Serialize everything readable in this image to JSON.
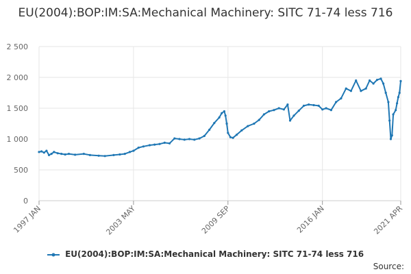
{
  "chart_data": {
    "type": "line",
    "title": "EU(2004):BOP:IM:SA:Mechanical Machinery: SITC 71-74 less 716",
    "xlabel": "",
    "ylabel": "",
    "ylim": [
      0,
      2500
    ],
    "yticks": [
      "0",
      "500",
      "1 000",
      "1 500",
      "2 000",
      "2 500"
    ],
    "xticks": [
      {
        "label": "1997 JAN",
        "date": "1997-01"
      },
      {
        "label": "2003 MAY",
        "date": "2003-05"
      },
      {
        "label": "2009 SEP",
        "date": "2009-09"
      },
      {
        "label": "2016 JAN",
        "date": "2016-01"
      },
      {
        "label": "2021 APR",
        "date": "2021-04"
      }
    ],
    "grid": true,
    "legend_position": "bottom",
    "series": [
      {
        "name": "EU(2004):BOP:IM:SA:Mechanical Machinery: SITC 71-74 less 716",
        "color": "#1f77b4",
        "points": [
          [
            "1997-01",
            790
          ],
          [
            "1997-03",
            800
          ],
          [
            "1997-05",
            780
          ],
          [
            "1997-07",
            810
          ],
          [
            "1997-09",
            740
          ],
          [
            "1997-11",
            760
          ],
          [
            "1998-01",
            790
          ],
          [
            "1998-04",
            770
          ],
          [
            "1998-07",
            760
          ],
          [
            "1998-10",
            750
          ],
          [
            "1999-01",
            760
          ],
          [
            "1999-06",
            745
          ],
          [
            "2000-01",
            760
          ],
          [
            "2000-06",
            740
          ],
          [
            "2001-01",
            730
          ],
          [
            "2001-06",
            725
          ],
          [
            "2002-01",
            740
          ],
          [
            "2002-06",
            750
          ],
          [
            "2002-10",
            760
          ],
          [
            "2003-02",
            790
          ],
          [
            "2003-05",
            810
          ],
          [
            "2003-09",
            860
          ],
          [
            "2004-01",
            880
          ],
          [
            "2004-06",
            900
          ],
          [
            "2004-10",
            910
          ],
          [
            "2005-02",
            920
          ],
          [
            "2005-06",
            940
          ],
          [
            "2005-10",
            930
          ],
          [
            "2006-02",
            1010
          ],
          [
            "2006-06",
            1000
          ],
          [
            "2006-10",
            990
          ],
          [
            "2007-02",
            1000
          ],
          [
            "2007-06",
            990
          ],
          [
            "2007-10",
            1010
          ],
          [
            "2008-02",
            1050
          ],
          [
            "2008-06",
            1150
          ],
          [
            "2008-10",
            1260
          ],
          [
            "2009-02",
            1350
          ],
          [
            "2009-04",
            1420
          ],
          [
            "2009-06",
            1450
          ],
          [
            "2009-07",
            1380
          ],
          [
            "2009-08",
            1250
          ],
          [
            "2009-09",
            1100
          ],
          [
            "2009-11",
            1030
          ],
          [
            "2010-01",
            1020
          ],
          [
            "2010-04",
            1070
          ],
          [
            "2010-08",
            1140
          ],
          [
            "2011-01",
            1210
          ],
          [
            "2011-06",
            1250
          ],
          [
            "2011-10",
            1310
          ],
          [
            "2012-02",
            1400
          ],
          [
            "2012-06",
            1450
          ],
          [
            "2012-10",
            1470
          ],
          [
            "2013-02",
            1500
          ],
          [
            "2013-06",
            1480
          ],
          [
            "2013-09",
            1560
          ],
          [
            "2013-11",
            1300
          ],
          [
            "2014-02",
            1380
          ],
          [
            "2014-06",
            1460
          ],
          [
            "2014-10",
            1540
          ],
          [
            "2015-02",
            1560
          ],
          [
            "2015-06",
            1550
          ],
          [
            "2015-10",
            1540
          ],
          [
            "2016-01",
            1480
          ],
          [
            "2016-04",
            1500
          ],
          [
            "2016-08",
            1470
          ],
          [
            "2016-12",
            1600
          ],
          [
            "2017-04",
            1660
          ],
          [
            "2017-08",
            1820
          ],
          [
            "2017-12",
            1780
          ],
          [
            "2018-04",
            1950
          ],
          [
            "2018-08",
            1780
          ],
          [
            "2018-12",
            1820
          ],
          [
            "2019-03",
            1950
          ],
          [
            "2019-06",
            1900
          ],
          [
            "2019-09",
            1960
          ],
          [
            "2019-12",
            1980
          ],
          [
            "2020-02",
            1900
          ],
          [
            "2020-04",
            1750
          ],
          [
            "2020-06",
            1600
          ],
          [
            "2020-07",
            1300
          ],
          [
            "2020-08",
            1000
          ],
          [
            "2020-09",
            1060
          ],
          [
            "2020-10",
            1400
          ],
          [
            "2020-12",
            1470
          ],
          [
            "2021-01",
            1580
          ],
          [
            "2021-02",
            1680
          ],
          [
            "2021-03",
            1750
          ],
          [
            "2021-04",
            1940
          ]
        ]
      }
    ]
  },
  "legend": {
    "label": "EU(2004):BOP:IM:SA:Mechanical Machinery: SITC 71-74 less 716"
  },
  "footer": {
    "source_label": "Source:"
  }
}
